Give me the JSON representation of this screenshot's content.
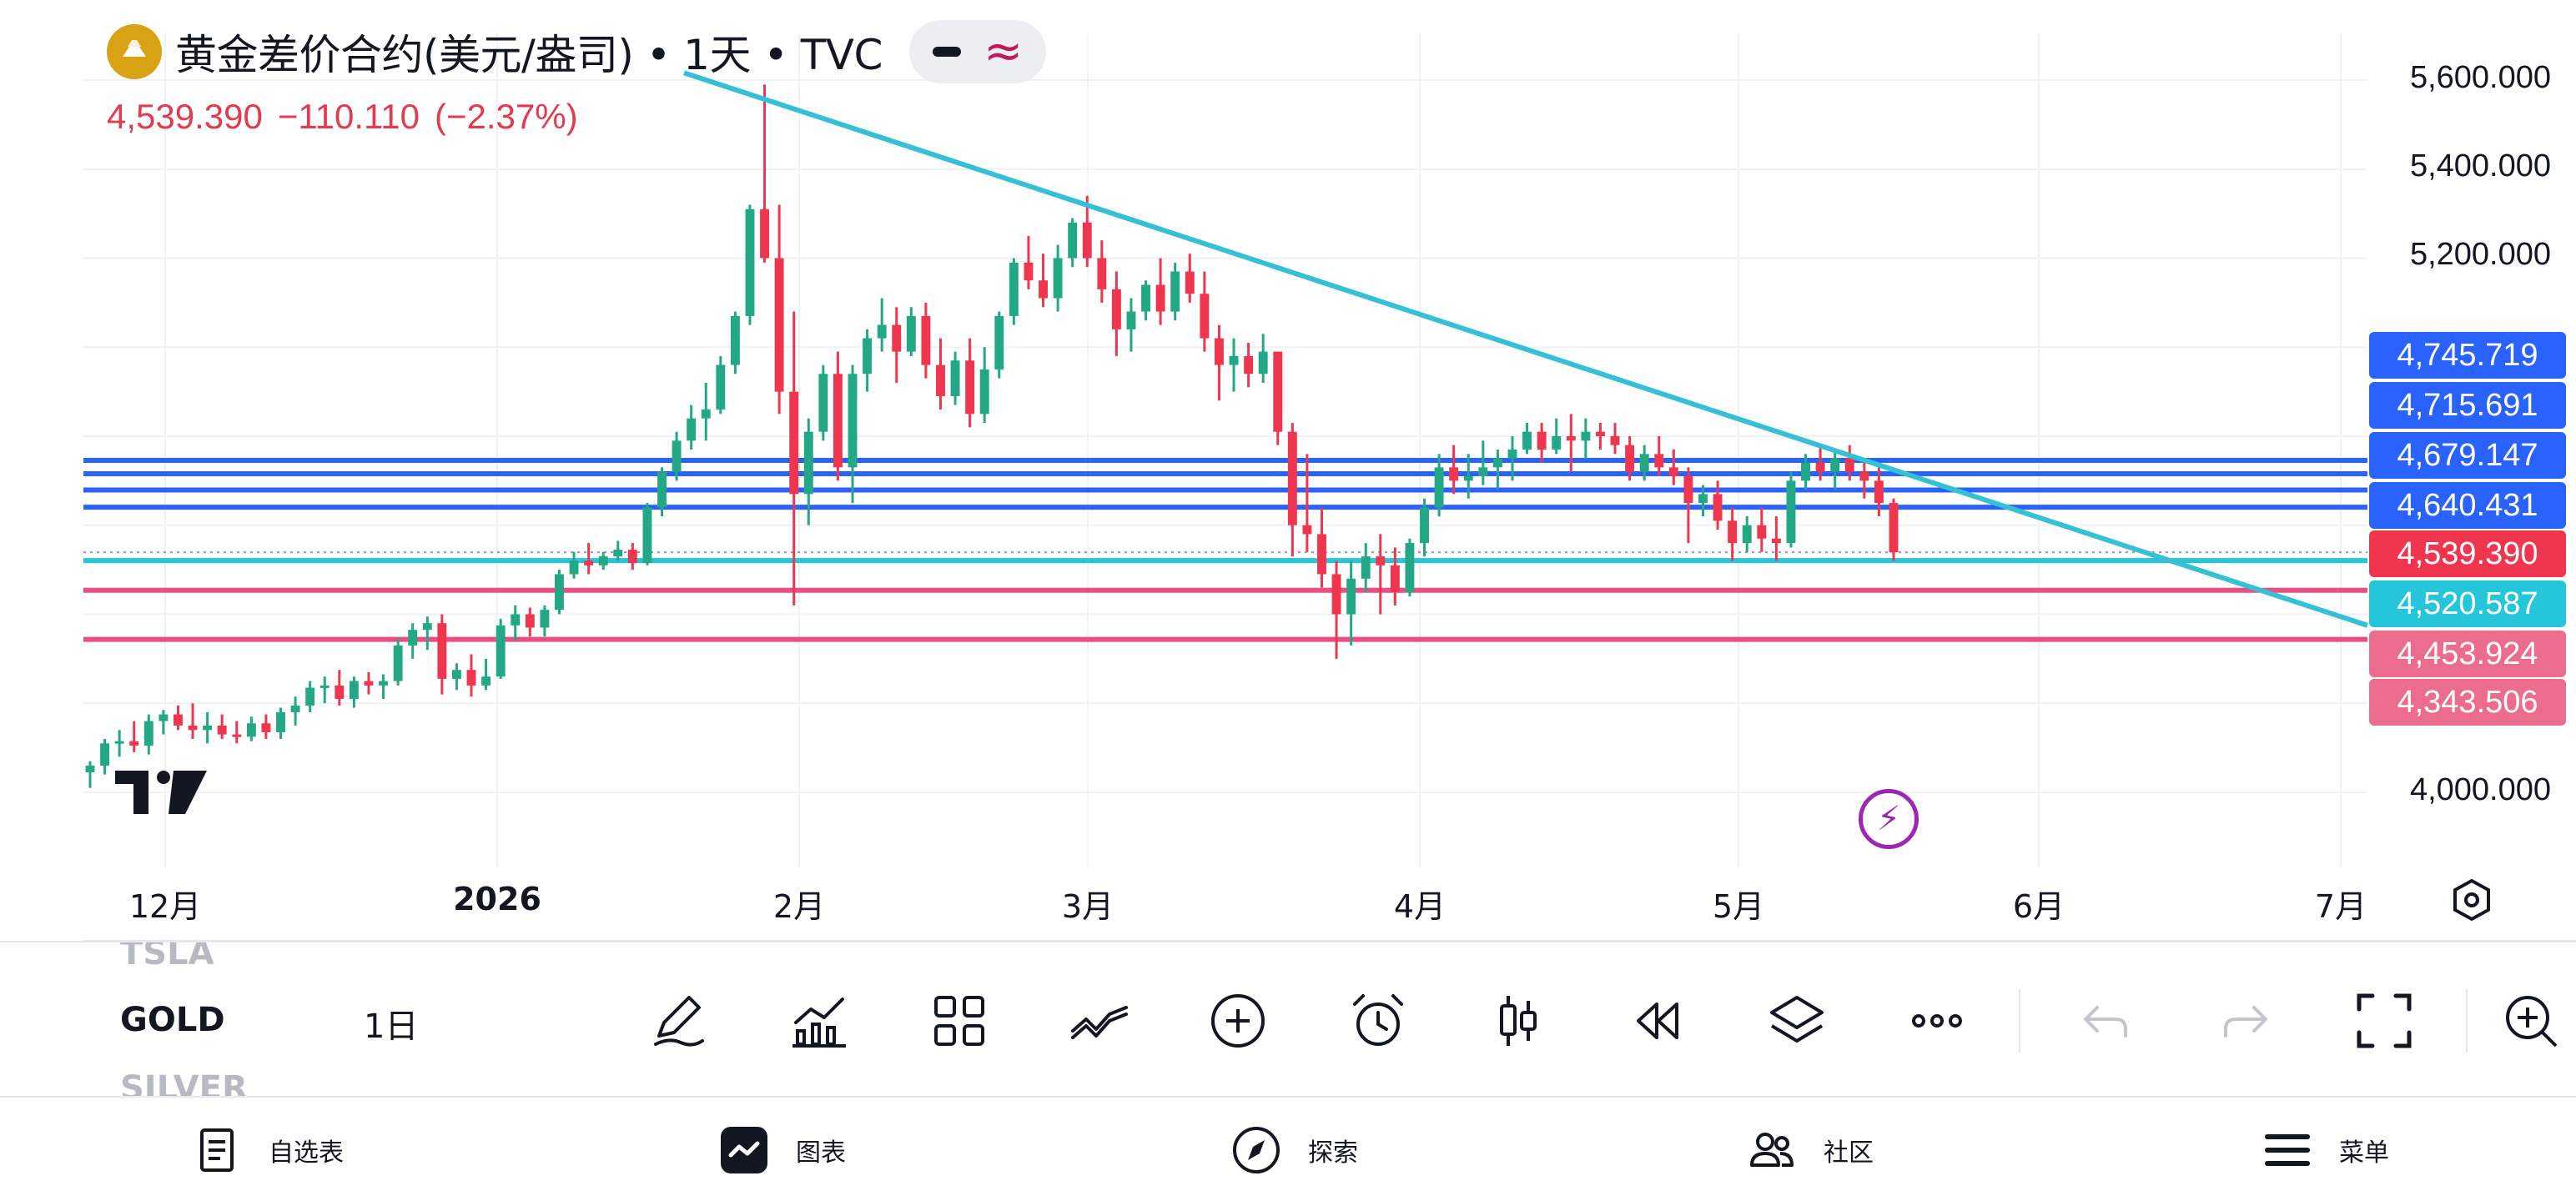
{
  "header": {
    "symbol_title": "黄金差价合约(美元/盎司) • 1天 • TVC",
    "last_price": "4,539.390",
    "change": "−110.110",
    "change_pct": "(−2.37%)"
  },
  "colors": {
    "up": "#22a884",
    "down": "#f0364f",
    "trendline": "#35c0d6",
    "blue_level": "#2962ff",
    "pink_level": "#ec4d82",
    "cyan_level": "#26c6da"
  },
  "y_axis_ticks": [
    "5,600.000",
    "5,400.000",
    "5,200.000",
    "4,000.000"
  ],
  "price_tags": [
    {
      "label": "4,745.719",
      "color": "#2962ff"
    },
    {
      "label": "4,715.691",
      "color": "#2962ff"
    },
    {
      "label": "4,679.147",
      "color": "#2962ff"
    },
    {
      "label": "4,640.431",
      "color": "#2962ff"
    },
    {
      "label": "4,539.390",
      "color": "#f0364f"
    },
    {
      "label": "4,520.587",
      "color": "#26c6da"
    },
    {
      "label": "4,453.924",
      "color": "#ec6c8e"
    },
    {
      "label": "4,343.506",
      "color": "#ec6c8e"
    }
  ],
  "x_axis_ticks": [
    "12月",
    "2026",
    "2月",
    "3月",
    "4月",
    "5月",
    "6月",
    "7月"
  ],
  "toolbar": {
    "symbols": [
      "TSLA",
      "GOLD",
      "SILVER"
    ],
    "interval": "1日"
  },
  "bottom_nav": {
    "watchlist": "自选表",
    "chart": "图表",
    "explore": "探索",
    "community": "社区",
    "menu": "菜单"
  },
  "chart_data": {
    "type": "candlestick",
    "title": "黄金差价合约(美元/盎司)",
    "interval": "1天",
    "source": "TVC",
    "x_labels": [
      "12月",
      "2026",
      "2月",
      "3月",
      "4月",
      "5月",
      "6月",
      "7月"
    ],
    "ylim": [
      3950,
      5650
    ],
    "candles": [
      [
        4045,
        4070,
        4010,
        4060
      ],
      [
        4060,
        4120,
        4040,
        4110
      ],
      [
        4110,
        4140,
        4080,
        4115
      ],
      [
        4115,
        4160,
        4090,
        4105
      ],
      [
        4105,
        4175,
        4085,
        4160
      ],
      [
        4160,
        4185,
        4130,
        4175
      ],
      [
        4175,
        4195,
        4140,
        4150
      ],
      [
        4150,
        4200,
        4120,
        4140
      ],
      [
        4140,
        4180,
        4110,
        4150
      ],
      [
        4150,
        4175,
        4120,
        4130
      ],
      [
        4130,
        4160,
        4110,
        4125
      ],
      [
        4125,
        4170,
        4115,
        4155
      ],
      [
        4155,
        4175,
        4120,
        4135
      ],
      [
        4135,
        4190,
        4120,
        4180
      ],
      [
        4180,
        4215,
        4150,
        4195
      ],
      [
        4195,
        4250,
        4180,
        4235
      ],
      [
        4235,
        4260,
        4200,
        4240
      ],
      [
        4240,
        4275,
        4195,
        4210
      ],
      [
        4210,
        4260,
        4190,
        4250
      ],
      [
        4250,
        4270,
        4220,
        4240
      ],
      [
        4240,
        4265,
        4210,
        4250
      ],
      [
        4250,
        4345,
        4240,
        4330
      ],
      [
        4330,
        4380,
        4300,
        4365
      ],
      [
        4365,
        4395,
        4320,
        4380
      ],
      [
        4380,
        4400,
        4220,
        4255
      ],
      [
        4255,
        4290,
        4230,
        4275
      ],
      [
        4275,
        4310,
        4215,
        4240
      ],
      [
        4240,
        4300,
        4230,
        4260
      ],
      [
        4260,
        4390,
        4255,
        4375
      ],
      [
        4375,
        4420,
        4340,
        4400
      ],
      [
        4400,
        4415,
        4350,
        4370
      ],
      [
        4370,
        4420,
        4350,
        4410
      ],
      [
        4410,
        4500,
        4400,
        4490
      ],
      [
        4490,
        4540,
        4480,
        4520
      ],
      [
        4520,
        4560,
        4490,
        4510
      ],
      [
        4510,
        4540,
        4500,
        4530
      ],
      [
        4530,
        4565,
        4520,
        4545
      ],
      [
        4545,
        4560,
        4500,
        4515
      ],
      [
        4515,
        4650,
        4510,
        4640
      ],
      [
        4640,
        4730,
        4620,
        4720
      ],
      [
        4720,
        4810,
        4700,
        4790
      ],
      [
        4790,
        4870,
        4770,
        4840
      ],
      [
        4840,
        4920,
        4790,
        4860
      ],
      [
        4860,
        4980,
        4850,
        4960
      ],
      [
        4960,
        5080,
        4940,
        5070
      ],
      [
        5070,
        5320,
        5050,
        5310
      ],
      [
        5310,
        5590,
        5190,
        5200
      ],
      [
        5200,
        5320,
        4850,
        4900
      ],
      [
        4900,
        5080,
        4420,
        4670
      ],
      [
        4670,
        4840,
        4600,
        4810
      ],
      [
        4810,
        4960,
        4790,
        4940
      ],
      [
        4940,
        4990,
        4700,
        4730
      ],
      [
        4730,
        4960,
        4650,
        4940
      ],
      [
        4940,
        5040,
        4900,
        5020
      ],
      [
        5020,
        5110,
        4990,
        5050
      ],
      [
        5050,
        5090,
        4920,
        4990
      ],
      [
        4990,
        5090,
        4980,
        5070
      ],
      [
        5070,
        5100,
        4930,
        4960
      ],
      [
        4960,
        5020,
        4860,
        4890
      ],
      [
        4890,
        4990,
        4870,
        4970
      ],
      [
        4970,
        5020,
        4820,
        4850
      ],
      [
        4850,
        5000,
        4830,
        4950
      ],
      [
        4950,
        5080,
        4930,
        5070
      ],
      [
        5070,
        5200,
        5050,
        5190
      ],
      [
        5190,
        5250,
        5130,
        5150
      ],
      [
        5150,
        5210,
        5090,
        5110
      ],
      [
        5110,
        5230,
        5080,
        5200
      ],
      [
        5200,
        5290,
        5180,
        5280
      ],
      [
        5280,
        5340,
        5180,
        5200
      ],
      [
        5200,
        5240,
        5100,
        5130
      ],
      [
        5130,
        5170,
        4980,
        5040
      ],
      [
        5040,
        5110,
        4990,
        5080
      ],
      [
        5080,
        5150,
        5060,
        5140
      ],
      [
        5140,
        5200,
        5050,
        5080
      ],
      [
        5080,
        5190,
        5060,
        5170
      ],
      [
        5170,
        5210,
        5100,
        5120
      ],
      [
        5120,
        5170,
        4990,
        5020
      ],
      [
        5020,
        5050,
        4880,
        4960
      ],
      [
        4960,
        5020,
        4900,
        4980
      ],
      [
        4980,
        5010,
        4910,
        4940
      ],
      [
        4940,
        5030,
        4920,
        4990
      ],
      [
        4990,
        4990,
        4780,
        4810
      ],
      [
        4810,
        4830,
        4530,
        4600
      ],
      [
        4600,
        4760,
        4540,
        4580
      ],
      [
        4580,
        4640,
        4460,
        4490
      ],
      [
        4490,
        4520,
        4300,
        4400
      ],
      [
        4400,
        4520,
        4330,
        4480
      ],
      [
        4480,
        4560,
        4450,
        4530
      ],
      [
        4530,
        4580,
        4400,
        4510
      ],
      [
        4510,
        4550,
        4420,
        4450
      ],
      [
        4450,
        4570,
        4440,
        4560
      ],
      [
        4560,
        4660,
        4530,
        4640
      ],
      [
        4640,
        4760,
        4620,
        4730
      ],
      [
        4730,
        4780,
        4670,
        4700
      ],
      [
        4700,
        4760,
        4660,
        4710
      ],
      [
        4710,
        4790,
        4690,
        4730
      ],
      [
        4730,
        4770,
        4680,
        4750
      ],
      [
        4750,
        4800,
        4700,
        4770
      ],
      [
        4770,
        4830,
        4760,
        4810
      ],
      [
        4810,
        4830,
        4740,
        4770
      ],
      [
        4770,
        4840,
        4760,
        4800
      ],
      [
        4800,
        4850,
        4720,
        4790
      ],
      [
        4790,
        4840,
        4750,
        4810
      ],
      [
        4810,
        4830,
        4770,
        4800
      ],
      [
        4800,
        4830,
        4760,
        4780
      ],
      [
        4780,
        4800,
        4700,
        4720
      ],
      [
        4720,
        4780,
        4700,
        4760
      ],
      [
        4760,
        4800,
        4710,
        4730
      ],
      [
        4730,
        4770,
        4690,
        4710
      ],
      [
        4710,
        4730,
        4560,
        4650
      ],
      [
        4650,
        4690,
        4620,
        4670
      ],
      [
        4670,
        4700,
        4590,
        4610
      ],
      [
        4610,
        4640,
        4520,
        4560
      ],
      [
        4560,
        4620,
        4540,
        4600
      ],
      [
        4600,
        4640,
        4540,
        4570
      ],
      [
        4570,
        4620,
        4520,
        4560
      ],
      [
        4560,
        4720,
        4550,
        4700
      ],
      [
        4700,
        4760,
        4680,
        4740
      ],
      [
        4740,
        4780,
        4700,
        4720
      ],
      [
        4720,
        4770,
        4680,
        4750
      ],
      [
        4750,
        4780,
        4700,
        4720
      ],
      [
        4720,
        4750,
        4660,
        4700
      ],
      [
        4700,
        4730,
        4620,
        4650
      ],
      [
        4650,
        4660,
        4520,
        4539
      ]
    ],
    "levels": [
      {
        "value": 4745.719,
        "color": "#2962ff"
      },
      {
        "value": 4715.691,
        "color": "#2962ff"
      },
      {
        "value": 4679.147,
        "color": "#2962ff"
      },
      {
        "value": 4640.431,
        "color": "#2962ff"
      },
      {
        "value": 4520.587,
        "color": "#26c6da"
      },
      {
        "value": 4453.924,
        "color": "#ec4d82"
      },
      {
        "value": 4343.506,
        "color": "#ec4d82"
      }
    ],
    "last_price": 4539.39,
    "trendline": {
      "from_price": 5650,
      "to_price": 4390
    }
  }
}
